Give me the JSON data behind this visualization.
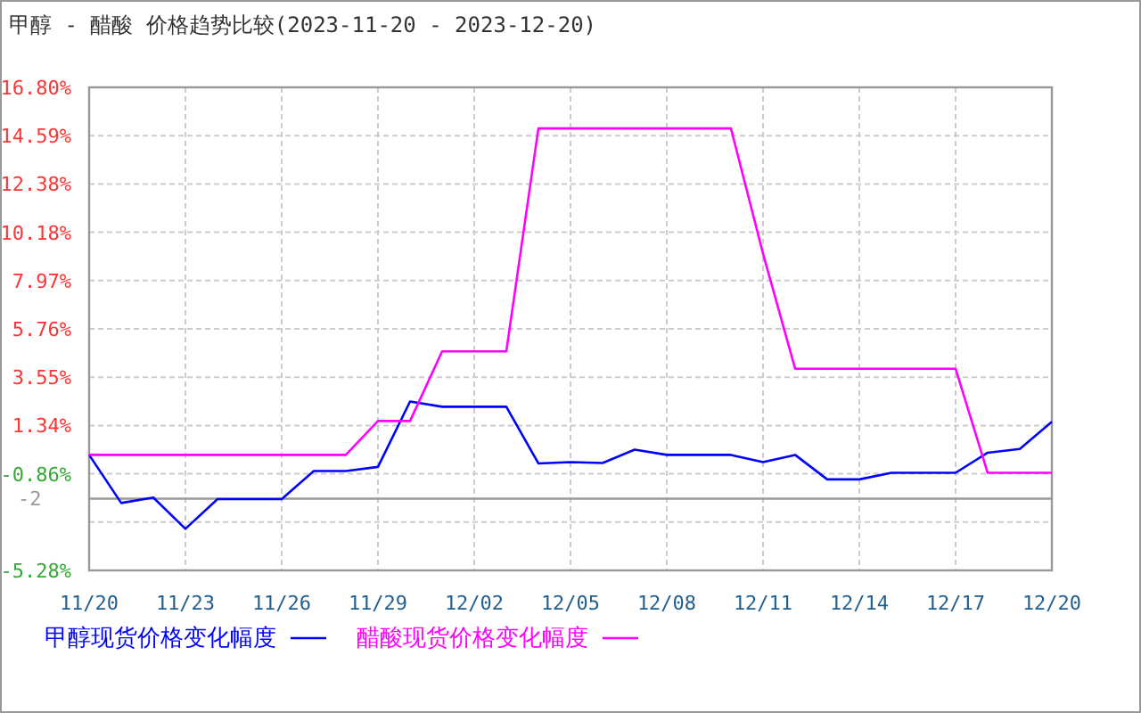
{
  "chart_data": {
    "type": "line",
    "title": "甲醇 - 醋酸 价格趋势比较(2023-11-20 - 2023-12-20)",
    "x": [
      "2023-11-20",
      "2023-11-21",
      "2023-11-22",
      "2023-11-23",
      "2023-11-24",
      "2023-11-25",
      "2023-11-26",
      "2023-11-27",
      "2023-11-28",
      "2023-11-29",
      "2023-11-30",
      "2023-12-01",
      "2023-12-02",
      "2023-12-03",
      "2023-12-04",
      "2023-12-05",
      "2023-12-06",
      "2023-12-07",
      "2023-12-08",
      "2023-12-09",
      "2023-12-10",
      "2023-12-11",
      "2023-12-12",
      "2023-12-13",
      "2023-12-14",
      "2023-12-15",
      "2023-12-16",
      "2023-12-17",
      "2023-12-18",
      "2023-12-19",
      "2023-12-20"
    ],
    "series": [
      {
        "name": "甲醇现货价格变化幅度",
        "color": "#0000ff",
        "values": [
          0,
          -2.2,
          -1.95,
          -3.38,
          -2.02,
          -2.02,
          -2.02,
          -0.74,
          -0.74,
          -0.55,
          2.44,
          2.2,
          2.2,
          2.2,
          -0.39,
          -0.33,
          -0.37,
          0.24,
          0,
          0,
          0,
          -0.33,
          0,
          -1.12,
          -1.12,
          -0.82,
          -0.82,
          -0.82,
          0.1,
          0.27,
          1.51
        ]
      },
      {
        "name": "醋酸现货价格变化幅度",
        "color": "#ff00ff",
        "values": [
          0,
          0,
          0,
          0,
          0,
          0,
          0,
          0,
          0,
          1.55,
          1.55,
          4.73,
          4.73,
          4.73,
          14.92,
          14.92,
          14.92,
          14.92,
          14.92,
          14.92,
          14.92,
          9.2,
          3.94,
          3.94,
          3.94,
          3.94,
          3.94,
          3.94,
          -0.82,
          -0.82,
          -0.82
        ]
      }
    ],
    "xlim": [
      "2023-11-20",
      "2023-12-20"
    ],
    "xticks": [
      {
        "value": "2023-11-20",
        "label": "11/20"
      },
      {
        "value": "2023-11-23",
        "label": "11/23"
      },
      {
        "value": "2023-11-26",
        "label": "11/26"
      },
      {
        "value": "2023-11-29",
        "label": "11/29"
      },
      {
        "value": "2023-12-02",
        "label": "12/02"
      },
      {
        "value": "2023-12-05",
        "label": "12/05"
      },
      {
        "value": "2023-12-08",
        "label": "12/08"
      },
      {
        "value": "2023-12-11",
        "label": "12/11"
      },
      {
        "value": "2023-12-14",
        "label": "12/14"
      },
      {
        "value": "2023-12-17",
        "label": "12/17"
      },
      {
        "value": "2023-12-20",
        "label": "12/20"
      }
    ],
    "ylim": [
      -5.28,
      16.8
    ],
    "yticks": [
      {
        "value": 16.8,
        "label": "16.80%"
      },
      {
        "value": 14.59,
        "label": "14.59%"
      },
      {
        "value": 12.38,
        "label": "12.38%"
      },
      {
        "value": 10.18,
        "label": "10.18%"
      },
      {
        "value": 7.97,
        "label": "7.97%"
      },
      {
        "value": 5.76,
        "label": "5.76%"
      },
      {
        "value": 3.55,
        "label": "3.55%"
      },
      {
        "value": 1.34,
        "label": "1.34%"
      },
      {
        "value": -0.86,
        "label": "-0.86%"
      },
      {
        "value": -3.07,
        "label": null
      },
      {
        "value": -5.28,
        "label": "-5.28%"
      }
    ],
    "ref_lines": [
      {
        "axis": "y",
        "value": -2,
        "label": "-2",
        "color": "#999999"
      }
    ],
    "grid": true,
    "legend": "bottom",
    "line_style": "solid"
  }
}
